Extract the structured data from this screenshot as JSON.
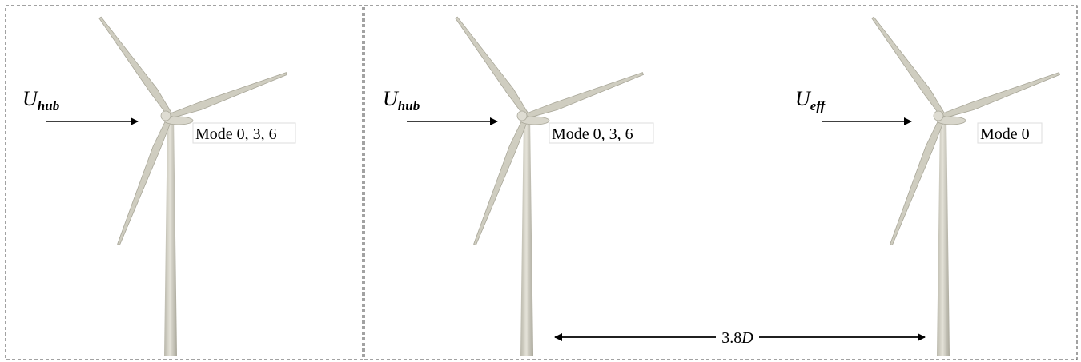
{
  "panels": [
    {
      "turbines": [
        {
          "inflow": {
            "symbol": "U",
            "subscript": "hub"
          },
          "mode": "Mode 0, 3, 6"
        }
      ]
    },
    {
      "turbines": [
        {
          "inflow": {
            "symbol": "U",
            "subscript": "hub"
          },
          "mode": "Mode 0, 3, 6"
        },
        {
          "inflow": {
            "symbol": "U",
            "subscript": "eff"
          },
          "mode": "Mode 0"
        }
      ],
      "spacing": {
        "number": "3.8",
        "symbol": "D"
      }
    }
  ]
}
